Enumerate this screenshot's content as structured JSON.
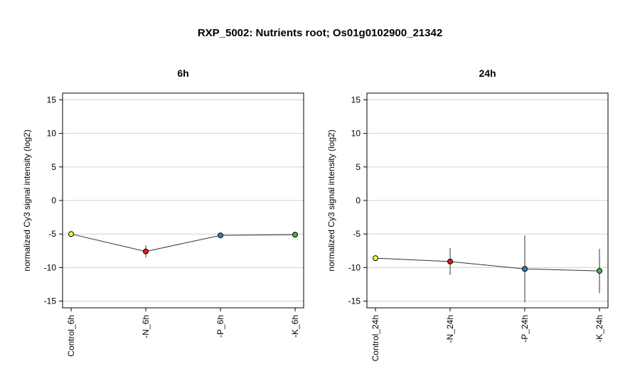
{
  "figure": {
    "title": "RXP_5002: Nutrients root; Os01g0102900_21342"
  },
  "chart_data": [
    {
      "type": "line",
      "title": "6h",
      "xlabel": "",
      "ylabel": "normalized Cy3 signal intensity (log2)",
      "categories": [
        "Control_6h",
        "-N_6h",
        "-P_6h",
        "-K_6h"
      ],
      "values": [
        -5.0,
        -7.6,
        -5.2,
        -5.1
      ],
      "errors": [
        0.1,
        0.9,
        0.3,
        0.2
      ],
      "point_colors": [
        "#ffff33",
        "#e41a1c",
        "#377eb8",
        "#4daf4a"
      ],
      "ylim": [
        -16,
        16
      ],
      "yticks": [
        -15,
        -10,
        -5,
        0,
        5,
        10,
        15
      ],
      "grid": true,
      "legend": "none"
    },
    {
      "type": "line",
      "title": "24h",
      "xlabel": "",
      "ylabel": "normalized Cy3 signal intensity (log2)",
      "categories": [
        "Control_24h",
        "-N_24h",
        "-P_24h",
        "-K_24h"
      ],
      "values": [
        -8.6,
        -9.1,
        -10.2,
        -10.5
      ],
      "errors": [
        0.2,
        2.0,
        5.0,
        3.3
      ],
      "point_colors": [
        "#ffff33",
        "#e41a1c",
        "#377eb8",
        "#4daf4a"
      ],
      "ylim": [
        -16,
        16
      ],
      "yticks": [
        -15,
        -10,
        -5,
        0,
        5,
        10,
        15
      ],
      "grid": true,
      "legend": "none"
    }
  ]
}
